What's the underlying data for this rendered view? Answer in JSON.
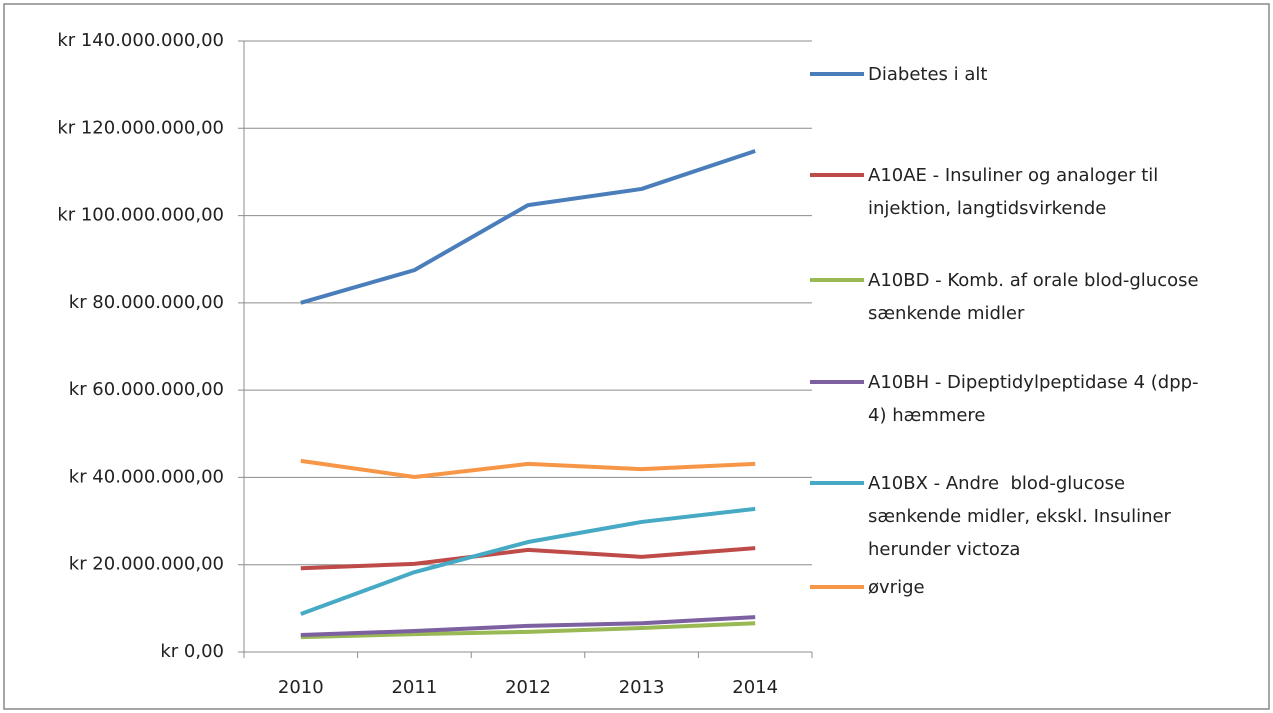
{
  "chart_data": {
    "type": "line",
    "categories": [
      "2010",
      "2011",
      "2012",
      "2013",
      "2014"
    ],
    "series": [
      {
        "name": "Diabetes i alt",
        "color": "#4a7ebb",
        "values": [
          80.0,
          87.5,
          102.4,
          106.1,
          114.8
        ]
      },
      {
        "name": "A10AE - Insuliner og analoger til injektion, langtidsvirkende",
        "color": "#be4b48",
        "values": [
          19.2,
          20.2,
          23.4,
          21.8,
          23.8
        ]
      },
      {
        "name": "A10BD - Komb. af orale blod-glucose sænkende midler",
        "color": "#98b954",
        "values": [
          3.4,
          4.1,
          4.6,
          5.5,
          6.6
        ]
      },
      {
        "name": "A10BH - Dipeptidylpeptidase 4 (dpp-4) hæmmere",
        "color": "#7d60a0",
        "values": [
          3.9,
          4.8,
          6.0,
          6.6,
          8.0
        ]
      },
      {
        "name": "A10BX - Andre  blod-glucose sænkende midler, ekskl. Insuliner herunder victoza",
        "color": "#46aac5",
        "values": [
          8.7,
          18.3,
          25.2,
          29.8,
          32.8
        ]
      },
      {
        "name": "øvrige",
        "color": "#f79646",
        "values": [
          43.8,
          40.1,
          43.1,
          41.9,
          43.1
        ]
      }
    ],
    "ylim": [
      0,
      140
    ],
    "yticks": [
      {
        "value": 0,
        "label": "kr 0,00"
      },
      {
        "value": 20,
        "label": "kr 20.000.000,00"
      },
      {
        "value": 40,
        "label": "kr 40.000.000,00"
      },
      {
        "value": 60,
        "label": "kr 60.000.000,00"
      },
      {
        "value": 80,
        "label": "kr 80.000.000,00"
      },
      {
        "value": 100,
        "label": "kr 100.000.000,00"
      },
      {
        "value": 120,
        "label": "kr 120.000.000,00"
      },
      {
        "value": 140,
        "label": "kr 140.000.000,00"
      }
    ],
    "grid": true
  }
}
